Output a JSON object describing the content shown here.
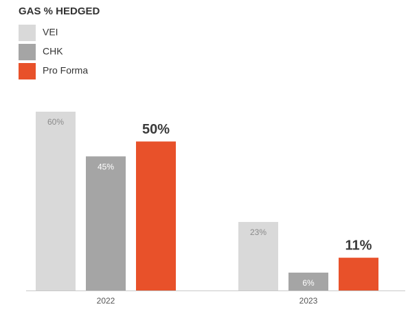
{
  "chart_data": {
    "type": "bar",
    "title": "GAS % HEDGED",
    "categories": [
      "2022",
      "2023"
    ],
    "series": [
      {
        "name": "VEI",
        "color": "#d9d9d9",
        "values": [
          60,
          23
        ],
        "value_labels": [
          "60%",
          "23%"
        ]
      },
      {
        "name": "CHK",
        "color": "#a5a5a5",
        "values": [
          45,
          6
        ],
        "value_labels": [
          "45%",
          "6%"
        ]
      },
      {
        "name": "Pro Forma",
        "color": "#e8512a",
        "values": [
          50,
          11
        ],
        "value_labels": [
          "50%",
          "11%"
        ]
      }
    ]
  }
}
